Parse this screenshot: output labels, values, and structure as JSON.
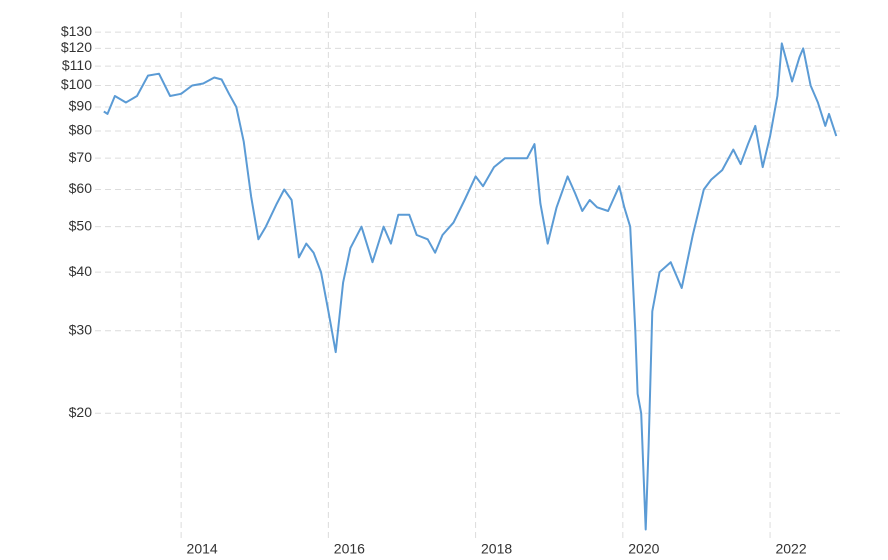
{
  "chart_data": {
    "type": "line",
    "x": [
      2012.95,
      2013.0,
      2013.1,
      2013.25,
      2013.4,
      2013.55,
      2013.7,
      2013.85,
      2014.0,
      2014.15,
      2014.3,
      2014.45,
      2014.55,
      2014.65,
      2014.75,
      2014.85,
      2014.95,
      2015.05,
      2015.15,
      2015.3,
      2015.4,
      2015.5,
      2015.6,
      2015.7,
      2015.8,
      2015.9,
      2016.0,
      2016.1,
      2016.2,
      2016.3,
      2016.45,
      2016.6,
      2016.75,
      2016.85,
      2016.95,
      2017.1,
      2017.2,
      2017.35,
      2017.45,
      2017.55,
      2017.7,
      2017.85,
      2018.0,
      2018.1,
      2018.25,
      2018.4,
      2018.55,
      2018.7,
      2018.8,
      2018.88,
      2018.98,
      2019.1,
      2019.25,
      2019.35,
      2019.45,
      2019.55,
      2019.65,
      2019.8,
      2019.95,
      2020.02,
      2020.1,
      2020.17,
      2020.2,
      2020.25,
      2020.31,
      2020.35,
      2020.4,
      2020.5,
      2020.65,
      2020.8,
      2020.95,
      2021.1,
      2021.2,
      2021.35,
      2021.5,
      2021.6,
      2021.7,
      2021.8,
      2021.9,
      2022.0,
      2022.1,
      2022.16,
      2022.3,
      2022.4,
      2022.45,
      2022.55,
      2022.65,
      2022.75,
      2022.8,
      2022.9
    ],
    "values": [
      88,
      87,
      95,
      92,
      95,
      105,
      106,
      95,
      96,
      100,
      101,
      104,
      103,
      96,
      90,
      76,
      58,
      47,
      50,
      56,
      60,
      57,
      43,
      46,
      44,
      40,
      33,
      27,
      38,
      45,
      50,
      42,
      50,
      46,
      53,
      53,
      48,
      47,
      44,
      48,
      51,
      57,
      64,
      61,
      67,
      70,
      70,
      70,
      75,
      56,
      46,
      55,
      64,
      59,
      54,
      57,
      55,
      54,
      61,
      55,
      50,
      30,
      22,
      20,
      11.3,
      17,
      33,
      40,
      42,
      37,
      48,
      60,
      63,
      66,
      73,
      68,
      75,
      82,
      67,
      78,
      95,
      123,
      102,
      115,
      120,
      100,
      92,
      82,
      87,
      78
    ],
    "color": "#5b9bd5",
    "xlim": [
      2012.83,
      2022.95
    ],
    "xticks": [
      2014,
      2016,
      2018,
      2020,
      2022
    ],
    "ylim": [
      11,
      140
    ],
    "log_scale": true,
    "grid": true,
    "yticks": [
      {
        "value": 20,
        "label": "$20"
      },
      {
        "value": 30,
        "label": "$30"
      },
      {
        "value": 40,
        "label": "$40"
      },
      {
        "value": 50,
        "label": "$50"
      },
      {
        "value": 60,
        "label": "$60"
      },
      {
        "value": 70,
        "label": "$70"
      },
      {
        "value": 80,
        "label": "$80"
      },
      {
        "value": 90,
        "label": "$90"
      },
      {
        "value": 100,
        "label": "$100"
      },
      {
        "value": 110,
        "label": "$110"
      },
      {
        "value": 120,
        "label": "$120"
      },
      {
        "value": 130,
        "label": "$130"
      }
    ]
  }
}
